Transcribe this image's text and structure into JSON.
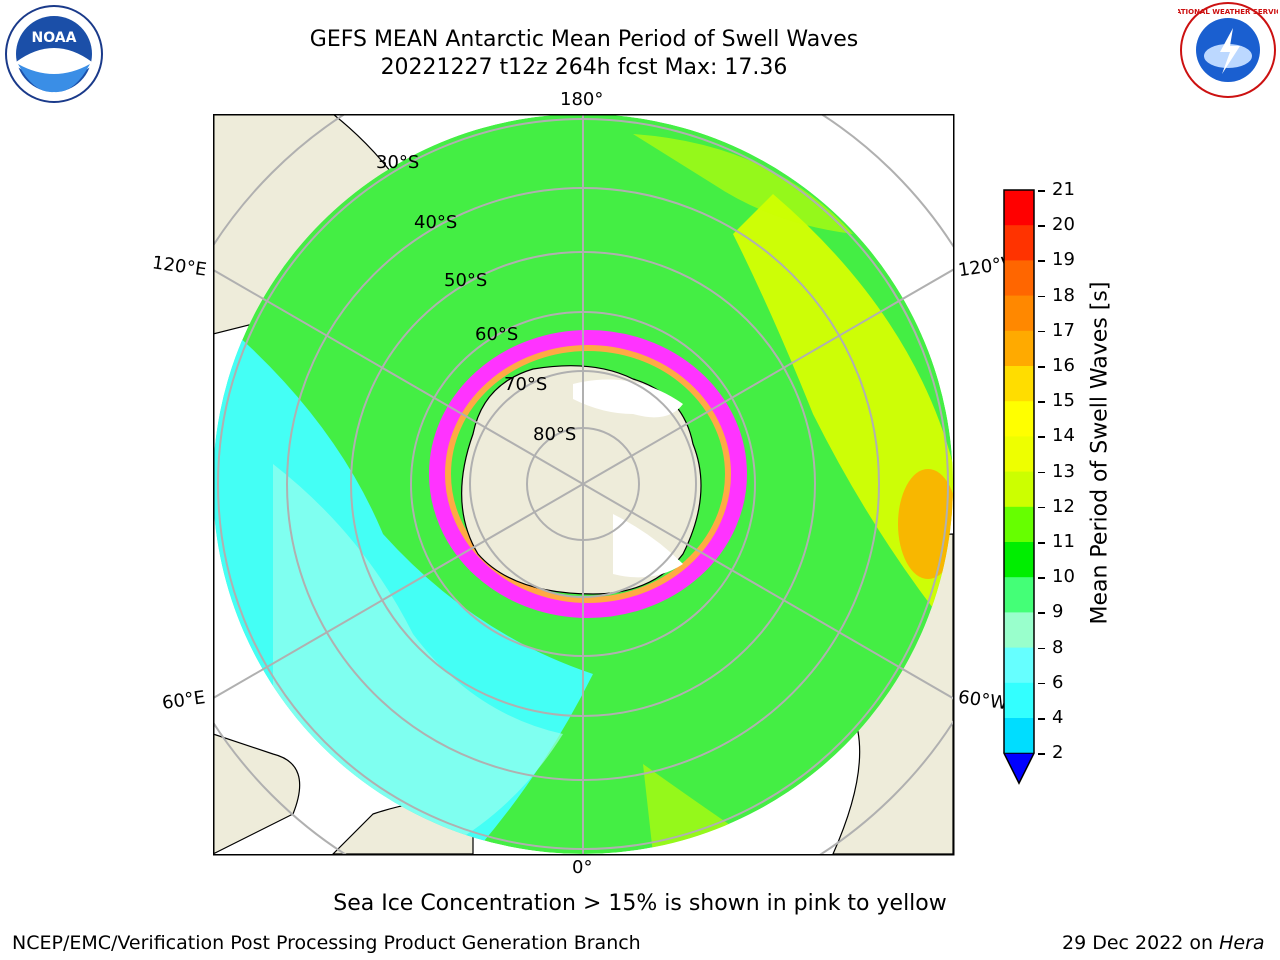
{
  "header": {
    "title_line1": "GEFS MEAN Antarctic Mean Period of Swell Waves",
    "title_line2": "20221227 t12z 264h fcst   Max: 17.36"
  },
  "logos": {
    "left": {
      "name": "noaa-logo",
      "text": "NOAA"
    },
    "right": {
      "name": "national-weather-service-logo",
      "text": "NATIONAL WEATHER SERVICE"
    }
  },
  "map": {
    "lon_labels": {
      "top": "180°",
      "bottom": "0°",
      "left_upper": "120°E",
      "left_lower": "60°E",
      "right_upper": "120°W",
      "right_lower": "60°W"
    },
    "lat_labels": [
      "30°S",
      "40°S",
      "50°S",
      "60°S",
      "70°S",
      "80°S"
    ]
  },
  "colorbar": {
    "label": "Mean Period of Swell Waves [s]",
    "ticks": [
      "21",
      "20",
      "19",
      "18",
      "17",
      "16",
      "15",
      "14",
      "13",
      "12",
      "11",
      "10",
      "9",
      "8",
      "6",
      "4",
      "2"
    ],
    "colors": [
      "#ff0000",
      "#ff3300",
      "#ff6600",
      "#ff8800",
      "#ffaa00",
      "#ffdd00",
      "#ffff00",
      "#eeff00",
      "#ccff00",
      "#66ff00",
      "#00ee00",
      "#44ff77",
      "#99ffcc",
      "#66ffff",
      "#33ffff",
      "#00ddff",
      "#0077ff"
    ],
    "under_color": "#0000ff"
  },
  "caption": "Sea Ice Concentration > 15% is shown in pink to yellow",
  "footer": {
    "left": "NCEP/EMC/Verification Post Processing Product Generation Branch",
    "right_date": "29 Dec 2022 on",
    "right_host": "Hera"
  }
}
